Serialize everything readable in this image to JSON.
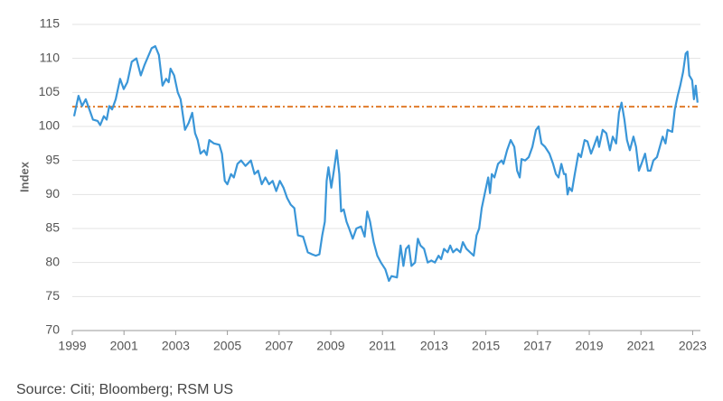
{
  "chart_data": {
    "type": "line",
    "y_label": "Index",
    "source": "Source: Citi; Bloomberg; RSM US",
    "color": "#3a96d8",
    "reference_line": {
      "value": 102.9,
      "color": "#e07b2a"
    },
    "xlim": [
      1999,
      2023.3
    ],
    "xticks": [
      1999,
      2001,
      2003,
      2005,
      2007,
      2009,
      2011,
      2013,
      2015,
      2017,
      2019,
      2021,
      2023
    ],
    "ylim": [
      70,
      115
    ],
    "yticks": [
      70,
      75,
      80,
      85,
      90,
      95,
      100,
      105,
      110,
      115
    ],
    "grid": true,
    "x": [
      1999.07,
      1999.24,
      1999.38,
      1999.52,
      1999.66,
      1999.8,
      1999.98,
      2000.08,
      2000.22,
      2000.33,
      2000.43,
      2000.54,
      2000.68,
      2000.85,
      2000.99,
      2001.13,
      2001.3,
      2001.48,
      2001.65,
      2001.79,
      2002.07,
      2002.21,
      2002.35,
      2002.49,
      2002.63,
      2002.73,
      2002.8,
      2002.94,
      2003.08,
      2003.19,
      2003.36,
      2003.5,
      2003.64,
      2003.75,
      2003.85,
      2003.96,
      2004.1,
      2004.2,
      2004.3,
      2004.48,
      2004.69,
      2004.79,
      2004.9,
      2005.0,
      2005.14,
      2005.25,
      2005.39,
      2005.53,
      2005.7,
      2005.91,
      2006.05,
      2006.19,
      2006.33,
      2006.47,
      2006.61,
      2006.75,
      2006.89,
      2007.03,
      2007.17,
      2007.31,
      2007.45,
      2007.59,
      2007.73,
      2007.93,
      2008.11,
      2008.28,
      2008.42,
      2008.56,
      2008.67,
      2008.77,
      2008.84,
      2008.91,
      2009.02,
      2009.12,
      2009.23,
      2009.33,
      2009.4,
      2009.5,
      2009.61,
      2009.71,
      2009.85,
      2009.99,
      2010.17,
      2010.31,
      2010.41,
      2010.52,
      2010.66,
      2010.8,
      2010.94,
      2011.11,
      2011.25,
      2011.35,
      2011.56,
      2011.7,
      2011.81,
      2011.91,
      2012.02,
      2012.12,
      2012.26,
      2012.37,
      2012.47,
      2012.61,
      2012.75,
      2012.89,
      2013.03,
      2013.17,
      2013.27,
      2013.38,
      2013.52,
      2013.62,
      2013.73,
      2013.87,
      2014.01,
      2014.11,
      2014.25,
      2014.39,
      2014.53,
      2014.64,
      2014.74,
      2014.84,
      2014.95,
      2015.09,
      2015.16,
      2015.23,
      2015.33,
      2015.47,
      2015.61,
      2015.68,
      2015.82,
      2015.96,
      2016.1,
      2016.21,
      2016.31,
      2016.38,
      2016.52,
      2016.66,
      2016.8,
      2016.94,
      2017.04,
      2017.15,
      2017.29,
      2017.46,
      2017.6,
      2017.71,
      2017.81,
      2017.92,
      2018.02,
      2018.09,
      2018.16,
      2018.23,
      2018.33,
      2018.44,
      2018.58,
      2018.68,
      2018.82,
      2018.93,
      2019.07,
      2019.17,
      2019.31,
      2019.38,
      2019.52,
      2019.66,
      2019.8,
      2019.91,
      2020.04,
      2020.15,
      2020.25,
      2020.36,
      2020.46,
      2020.57,
      2020.71,
      2020.81,
      2020.92,
      2021.02,
      2021.16,
      2021.27,
      2021.37,
      2021.48,
      2021.62,
      2021.73,
      2021.84,
      2021.95,
      2022.03,
      2022.21,
      2022.31,
      2022.42,
      2022.52,
      2022.63,
      2022.73,
      2022.8,
      2022.87,
      2022.98,
      2023.05,
      2023.12,
      2023.19
    ],
    "values": [
      101.5,
      104.5,
      103,
      104,
      102.5,
      101,
      100.8,
      100.2,
      101.5,
      101,
      103,
      102.5,
      104,
      107,
      105.5,
      106.5,
      109.5,
      110,
      107.5,
      109,
      111.5,
      111.8,
      110.5,
      106,
      107,
      106.5,
      108.5,
      107.5,
      105,
      104,
      99.5,
      100.5,
      102,
      99,
      98,
      96,
      96.5,
      95.8,
      98,
      97.5,
      97.3,
      96,
      92,
      91.5,
      93,
      92.5,
      94.5,
      95,
      94.2,
      95,
      93,
      93.5,
      91.5,
      92.5,
      91.5,
      92,
      90.5,
      92,
      91,
      89.5,
      88.5,
      88,
      84,
      83.8,
      81.5,
      81.2,
      81,
      81.2,
      84,
      86,
      92,
      94,
      91,
      93.5,
      96.5,
      93,
      87.5,
      87.8,
      86,
      85,
      83.5,
      85,
      85.3,
      83.8,
      87.5,
      86,
      83,
      81,
      80,
      79,
      77.3,
      78,
      77.8,
      82.5,
      79.5,
      82,
      82.5,
      79.5,
      80,
      83.5,
      82.5,
      82,
      80,
      80.3,
      80,
      81,
      80.5,
      82,
      81.5,
      82.5,
      81.5,
      82,
      81.5,
      83,
      82,
      81.5,
      81,
      84,
      85,
      88,
      90,
      92.5,
      90.2,
      93,
      92.5,
      94.5,
      95,
      94.5,
      96.5,
      98,
      97,
      93.5,
      92.5,
      95.2,
      95,
      95.5,
      97,
      99.5,
      100,
      97.5,
      97,
      96,
      94.5,
      93,
      92.5,
      94.5,
      93,
      93,
      90,
      91,
      90.5,
      93,
      96,
      95.5,
      98,
      97.8,
      96,
      97,
      98.5,
      97,
      99.5,
      99,
      96.5,
      98.5,
      97.5,
      102,
      103.5,
      101,
      98,
      96.5,
      98.5,
      97,
      93.5,
      94.5,
      96,
      93.5,
      93.5,
      95,
      95.5,
      97,
      98.5,
      97.5,
      99.5,
      99.2,
      102.5,
      104.5,
      106,
      108,
      110.7,
      111,
      107.5,
      106.8,
      104,
      106,
      103.5
    ]
  }
}
